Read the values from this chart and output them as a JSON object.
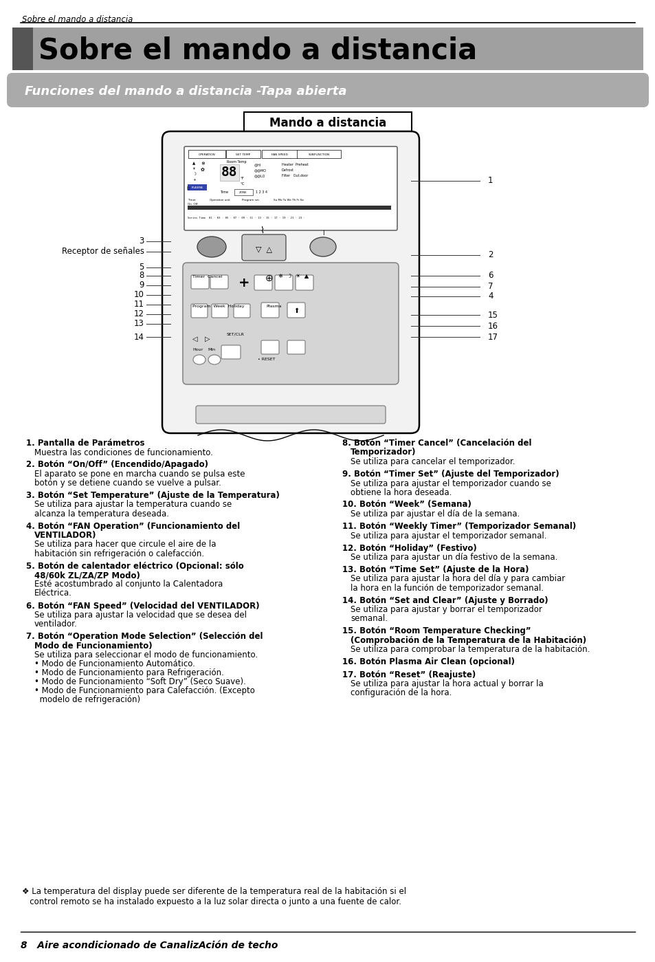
{
  "header_italic": "Sobre el mando a distancia",
  "title_main": "Sobre el mando a distancia",
  "subtitle": "Funciones del mando a distancia -Tapa abierta",
  "box_title": "Mando a distancia",
  "footer_text": "8   Aire acondicionado de CanalizAción de techo",
  "note_text": "❖ La temperatura del display puede ser diferente de la temperatura real de la habitación si el\n   control remoto se ha instalado expuesto a la luz solar directa o junto a una fuente de calor.",
  "descriptions_left": [
    {
      "bold_parts": [
        "1. Pantalla de Parámetros"
      ],
      "normal": [
        "Muestra las condiciones de funcionamiento."
      ]
    },
    {
      "bold_parts": [
        "2. Botón “On/Off” (Encendido/Apagado)"
      ],
      "normal": [
        "El aparato se pone en marcha cuando se pulsa este",
        "botón y se detiene cuando se vuelve a pulsar."
      ]
    },
    {
      "bold_parts": [
        "3. Botón “Set Temperature” (Ajuste de la Temperatura)"
      ],
      "normal": [
        "Se utiliza para ajustar la temperatura cuando se",
        "alcanza la temperatura deseada."
      ]
    },
    {
      "bold_parts": [
        "4. Botón “FAN Operation” (Funcionamiento del",
        "VENTILADOR)"
      ],
      "normal": [
        "Se utiliza para hacer que circule el aire de la",
        "habitación sin refrigeración o calefacción."
      ]
    },
    {
      "bold_parts": [
        "5. Botón de calentador eléctrico (Opcional: sólo",
        "48/60k ZL/ZA/ZP Modo)"
      ],
      "normal": [
        "Esté acostumbrado al conjunto la Calentadora",
        "Eléctrica."
      ]
    },
    {
      "bold_parts": [
        "6. Botón “FAN Speed” (Velocidad del VENTILADOR)"
      ],
      "normal": [
        "Se utiliza para ajustar la velocidad que se desea del",
        "ventilador."
      ]
    },
    {
      "bold_parts": [
        "7. Botón “Operation Mode Selection” (Selección del",
        "Modo de Funcionamiento)"
      ],
      "normal": [
        "Se utiliza para seleccionar el modo de funcionamiento.",
        "• Modo de Funcionamiento Automático.",
        "• Modo de Funcionamiento para Refrigeración.",
        "• Modo de Funcionamiento “Soft Dry” (Seco Suave).",
        "• Modo de Funcionamiento para Calefacción. (Excepto",
        "  modelo de refrigeración)"
      ]
    }
  ],
  "descriptions_right": [
    {
      "bold_parts": [
        "8. Botón “Timer Cancel” (Cancelación del",
        "Temporizador)"
      ],
      "normal": [
        "Se utiliza para cancelar el temporizador."
      ]
    },
    {
      "bold_parts": [
        "9. Botón “Timer Set” (Ajuste del Temporizador)"
      ],
      "normal": [
        "Se utiliza para ajustar el temporizador cuando se",
        "obtiene la hora deseada."
      ]
    },
    {
      "bold_parts": [
        "10. Botón “Week” (Semana)"
      ],
      "normal": [
        "Se utiliza par ajustar el día de la semana."
      ]
    },
    {
      "bold_parts": [
        "11. Botón “Weekly Timer” (Temporizador Semanal)"
      ],
      "normal": [
        "Se utiliza para ajustar el temporizador semanal."
      ]
    },
    {
      "bold_parts": [
        "12. Botón “Holiday” (Festivo)"
      ],
      "normal": [
        "Se utiliza para ajustar un día festivo de la semana."
      ]
    },
    {
      "bold_parts": [
        "13. Botón “Time Set” (Ajuste de la Hora)"
      ],
      "normal": [
        "Se utiliza para ajustar la hora del día y para cambiar",
        "la hora en la función de temporizador semanal."
      ]
    },
    {
      "bold_parts": [
        "14. Botón “Set and Clear” (Ajuste y Borrado)"
      ],
      "normal": [
        "Se utiliza para ajustar y borrar el temporizador",
        "semanal."
      ]
    },
    {
      "bold_parts": [
        "15. Botón “Room Temperature Checking”",
        "(Comprobación de la Temperatura de la Habitación)"
      ],
      "normal": [
        "Se utiliza para comprobar la temperatura de la habitación."
      ]
    },
    {
      "bold_parts": [
        "16. Botón Plasma Air Clean (opcional)"
      ],
      "normal": []
    },
    {
      "bold_parts": [
        "17. Botón “Reset” (Reajuste)"
      ],
      "normal": [
        "Se utiliza para ajustar la hora actual y borrar la",
        "configuración de la hora."
      ]
    }
  ],
  "bg_color": "#ffffff"
}
